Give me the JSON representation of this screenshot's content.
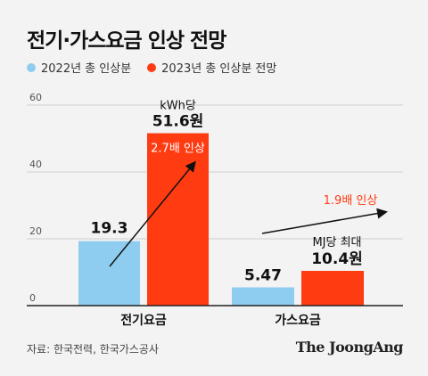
{
  "title": "전기·가스요금 인상 전망",
  "legend": [
    {
      "label": "2022년 총 인상분",
      "color": "#8ecdf0"
    },
    {
      "label": "2023년 총 인상분 전망",
      "color": "#ff3b12"
    }
  ],
  "chart_data": {
    "type": "bar",
    "categories": [
      "전기요금",
      "가스요금"
    ],
    "series": [
      {
        "name": "2022년 총 인상분",
        "values": [
          19.3,
          5.47
        ],
        "color": "#8ecdf0"
      },
      {
        "name": "2023년 총 인상분 전망",
        "values": [
          51.6,
          10.4
        ],
        "color": "#ff3b12"
      }
    ],
    "value_labels": [
      [
        "19.3",
        "51.6원"
      ],
      [
        "5.47",
        "10.4원"
      ]
    ],
    "unit_labels": [
      "kWh당",
      "MJ당 최대"
    ],
    "increase_labels": [
      "2.7배 인상",
      "1.9배 인상"
    ],
    "yticks": [
      0,
      20,
      40,
      60
    ],
    "ylim": [
      0,
      60
    ],
    "grid": true
  },
  "source": "자료: 한국전력, 한국가스공사",
  "brand": "The JoongAng"
}
